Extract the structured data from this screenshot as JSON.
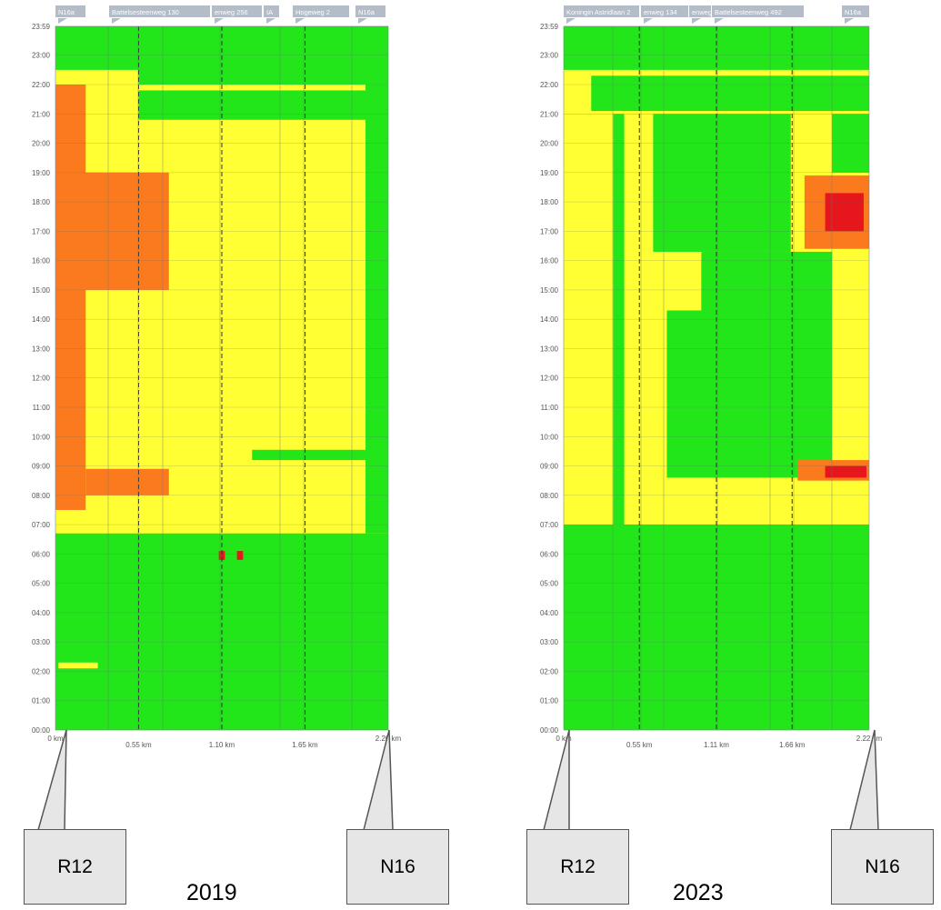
{
  "chart_data": [
    {
      "type": "heatmap",
      "year": "2019",
      "street_labels": [
        "N16a",
        "Battelsesteenweg 130",
        "enweg 256",
        "IA",
        "Hogeweg 2",
        "N16a"
      ],
      "x_ticks": [
        {
          "value": 0,
          "label": "0 km"
        },
        {
          "value": 0.55,
          "label": "0.55 km"
        },
        {
          "value": 1.1,
          "label": "1.10 km"
        },
        {
          "value": 1.65,
          "label": "1.65 km"
        },
        {
          "value": 2.2,
          "label": "2.20 km"
        }
      ],
      "xlim": [
        0,
        2.2
      ],
      "y_ticks": [
        "00:00",
        "01:00",
        "02:00",
        "03:00",
        "04:00",
        "05:00",
        "06:00",
        "07:00",
        "08:00",
        "09:00",
        "10:00",
        "11:00",
        "12:00",
        "13:00",
        "14:00",
        "15:00",
        "16:00",
        "17:00",
        "18:00",
        "19:00",
        "20:00",
        "21:00",
        "22:00",
        "23:00",
        "23:59"
      ],
      "ylim": [
        "00:00",
        "23:59"
      ],
      "legend_colors": {
        "free_flow": "#22e51a",
        "slow": "#ffff33",
        "congested": "#fb7a1e",
        "jam": "#e6161d"
      },
      "regions": [
        {
          "level": "slow",
          "x": [
            0,
            2.2
          ],
          "t": [
            6.7,
            22.0
          ]
        },
        {
          "level": "slow",
          "x": [
            0,
            0.55
          ],
          "t": [
            22.0,
            22.5
          ]
        },
        {
          "level": "congested",
          "x": [
            0,
            0.2
          ],
          "t": [
            7.5,
            22.0
          ]
        },
        {
          "level": "congested",
          "x": [
            0.2,
            0.75
          ],
          "t": [
            8.0,
            8.9
          ]
        },
        {
          "level": "congested",
          "x": [
            0,
            0.75
          ],
          "t": [
            15.0,
            19.0
          ]
        },
        {
          "level": "free_flow",
          "x": [
            1.3,
            2.2
          ],
          "t": [
            9.2,
            9.55
          ]
        },
        {
          "level": "free_flow",
          "x": [
            0.55,
            2.2
          ],
          "t": [
            20.8,
            21.8
          ]
        },
        {
          "level": "free_flow",
          "x": [
            2.05,
            2.2
          ],
          "t": [
            6.7,
            22.0
          ]
        },
        {
          "level": "jam",
          "x": [
            1.08,
            1.12
          ],
          "t": [
            5.8,
            6.1
          ]
        },
        {
          "level": "jam",
          "x": [
            1.2,
            1.24
          ],
          "t": [
            5.8,
            6.1
          ]
        },
        {
          "level": "slow",
          "x": [
            0.02,
            0.28
          ],
          "t": [
            2.1,
            2.3
          ]
        }
      ]
    },
    {
      "type": "heatmap",
      "year": "2023",
      "street_labels": [
        "Koningin Astridlaan 2",
        "enweg 134",
        "enweg",
        "Battelsesteenweg 492",
        "N16a"
      ],
      "x_ticks": [
        {
          "value": 0,
          "label": "0 km"
        },
        {
          "value": 0.55,
          "label": "0.55 km"
        },
        {
          "value": 1.11,
          "label": "1.11 km"
        },
        {
          "value": 1.66,
          "label": "1.66 km"
        },
        {
          "value": 2.22,
          "label": "2.22 km"
        }
      ],
      "xlim": [
        0,
        2.22
      ],
      "y_ticks": [
        "00:00",
        "01:00",
        "02:00",
        "03:00",
        "04:00",
        "05:00",
        "06:00",
        "07:00",
        "08:00",
        "09:00",
        "10:00",
        "11:00",
        "12:00",
        "13:00",
        "14:00",
        "15:00",
        "16:00",
        "17:00",
        "18:00",
        "19:00",
        "20:00",
        "21:00",
        "22:00",
        "23:00",
        "23:59"
      ],
      "ylim": [
        "00:00",
        "23:59"
      ],
      "legend_colors": {
        "free_flow": "#22e51a",
        "slow": "#ffff33",
        "congested": "#fb7a1e",
        "jam": "#e6161d"
      },
      "regions": [
        {
          "level": "slow",
          "x": [
            0,
            2.22
          ],
          "t": [
            7.0,
            21.0
          ]
        },
        {
          "level": "free_flow",
          "x": [
            0.36,
            0.44
          ],
          "t": [
            7.0,
            21.0
          ]
        },
        {
          "level": "free_flow",
          "x": [
            0.75,
            1.95
          ],
          "t": [
            8.6,
            14.3
          ]
        },
        {
          "level": "free_flow",
          "x": [
            1.0,
            1.95
          ],
          "t": [
            14.3,
            16.3
          ]
        },
        {
          "level": "free_flow",
          "x": [
            0.65,
            1.65
          ],
          "t": [
            16.3,
            21.0
          ]
        },
        {
          "level": "free_flow",
          "x": [
            1.95,
            2.22
          ],
          "t": [
            19.0,
            21.0
          ]
        },
        {
          "level": "congested",
          "x": [
            1.75,
            2.22
          ],
          "t": [
            16.4,
            18.9
          ]
        },
        {
          "level": "jam",
          "x": [
            1.9,
            2.18
          ],
          "t": [
            17.0,
            18.3
          ]
        },
        {
          "level": "congested",
          "x": [
            1.7,
            2.22
          ],
          "t": [
            8.5,
            9.2
          ]
        },
        {
          "level": "jam",
          "x": [
            1.9,
            2.2
          ],
          "t": [
            8.6,
            9.0
          ]
        },
        {
          "level": "slow",
          "x": [
            0,
            2.22
          ],
          "t": [
            21.0,
            22.5
          ]
        },
        {
          "level": "free_flow",
          "x": [
            0.2,
            2.22
          ],
          "t": [
            21.1,
            22.3
          ]
        }
      ]
    }
  ],
  "callouts": [
    {
      "label": "R12"
    },
    {
      "label": "N16"
    },
    {
      "label": "R12"
    },
    {
      "label": "N16"
    }
  ],
  "years": [
    "2019",
    "2023"
  ]
}
